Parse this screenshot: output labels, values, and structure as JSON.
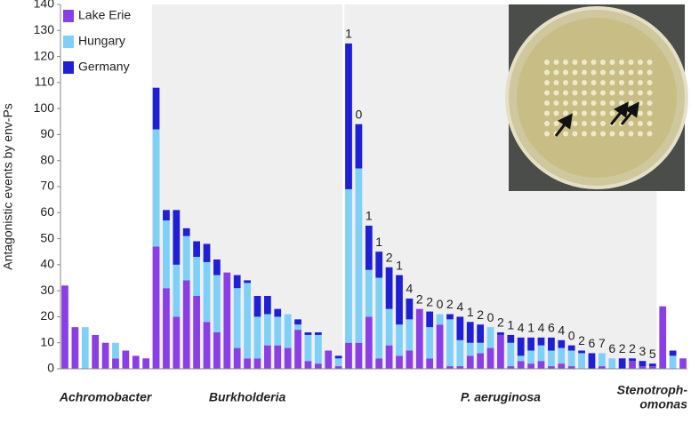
{
  "chart_data": {
    "type": "grouped_stacked_bar",
    "y_label": "Antagonistic events by env-Ps",
    "ylim": [
      0,
      140
    ],
    "yticks": [
      0,
      10,
      20,
      30,
      40,
      50,
      60,
      70,
      80,
      90,
      100,
      110,
      120,
      130,
      140
    ],
    "legend": "top-left",
    "series": [
      {
        "name": "Lake Erie",
        "color": "#8a3fe6"
      },
      {
        "name": "Hungary",
        "color": "#7fd0f7"
      },
      {
        "name": "Germany",
        "color": "#1f1fd6"
      }
    ],
    "groups": [
      {
        "name": [
          "Achromobacter"
        ],
        "shaded": false,
        "values": [
          [
            32,
            16,
            0,
            13,
            10,
            4,
            7,
            5,
            4
          ],
          [
            0,
            0,
            16,
            0,
            0,
            6,
            0,
            0,
            0
          ],
          [
            0,
            0,
            0,
            0,
            0,
            0,
            0,
            0,
            0
          ]
        ]
      },
      {
        "name": [
          "Burkholderia"
        ],
        "shaded": true,
        "values": [
          [
            47,
            31,
            20,
            34,
            28,
            18,
            14,
            37,
            8,
            4,
            4,
            9,
            9,
            8,
            15,
            3,
            2,
            7,
            1
          ],
          [
            45,
            26,
            20,
            17,
            15,
            23,
            22,
            0,
            23,
            29,
            16,
            12,
            11,
            13,
            2,
            10,
            11,
            0,
            3
          ],
          [
            16,
            4,
            21,
            3,
            6,
            7,
            6,
            0,
            5,
            1,
            8,
            7,
            3,
            0,
            2,
            1,
            1,
            0,
            1
          ]
        ]
      },
      {
        "name": [
          "P. aeruginosa"
        ],
        "shaded": true,
        "annotations": [
          "1",
          "0",
          "1",
          "1",
          "2",
          "1",
          "4",
          "2",
          "2",
          "0",
          "2",
          "4",
          "1",
          "2",
          "0",
          "2",
          "1",
          "4",
          "1",
          "4",
          "6",
          "4",
          "0",
          "2",
          "6",
          "7",
          "6",
          "2",
          "2",
          "3",
          "5"
        ],
        "values": [
          [
            10,
            10,
            20,
            4,
            9,
            5,
            7,
            23,
            4,
            17,
            1,
            1,
            5,
            6,
            8,
            13,
            1,
            3,
            2,
            3,
            1,
            2,
            1,
            0,
            0,
            1,
            0,
            0,
            3,
            1,
            1
          ],
          [
            59,
            67,
            18,
            31,
            14,
            12,
            12,
            0,
            12,
            4,
            18,
            10,
            5,
            4,
            8,
            0,
            9,
            2,
            5,
            6,
            6,
            6,
            6,
            6,
            0,
            5,
            4,
            0,
            0,
            0,
            0
          ],
          [
            56,
            17,
            17,
            10,
            16,
            19,
            8,
            0,
            6,
            0,
            2,
            9,
            8,
            7,
            0,
            1,
            3,
            7,
            5,
            3,
            5,
            3,
            2,
            1,
            6,
            0,
            0,
            4,
            1,
            2,
            1
          ]
        ]
      },
      {
        "name": [
          "Stenotroph-",
          "omonas"
        ],
        "shaded": false,
        "values": [
          [
            24,
            0,
            4
          ],
          [
            0,
            5,
            0
          ],
          [
            0,
            2,
            0
          ]
        ]
      }
    ]
  }
}
